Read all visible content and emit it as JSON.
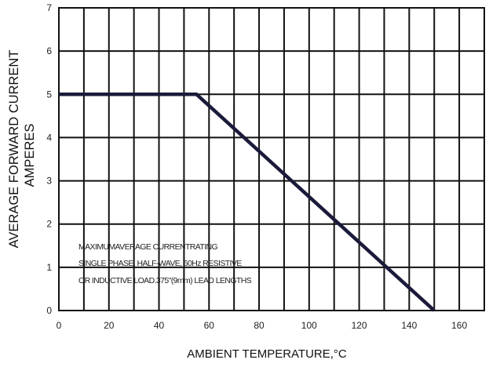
{
  "chart_data": {
    "type": "line",
    "title": "",
    "xlabel": "AMBIENT TEMPERATURE,°C",
    "ylabel_line1": "AVERAGE FORWARD CURRENT",
    "ylabel_line2": "AMPERES",
    "xlim": [
      0,
      170
    ],
    "ylim": [
      0,
      7
    ],
    "x_ticks": [
      0,
      20,
      40,
      60,
      80,
      100,
      120,
      140,
      160
    ],
    "y_ticks": [
      0,
      1,
      2,
      3,
      4,
      5,
      6,
      7
    ],
    "x_grid_step": 10,
    "y_grid_step": 1,
    "grid": true,
    "legend": "none",
    "series": [
      {
        "x": [
          0,
          55,
          150
        ],
        "y": [
          5,
          5,
          0
        ],
        "color": "#1a1a3a"
      }
    ],
    "annotation_lines": [
      "MAXIMUMAVERAGE CURRENTRATING",
      "SINGLE PHASE, HALF-WAVE, 60Hz RESISTIVE",
      "OR INDUCTIVE LOAD.375\"(9mm) LEAD LENGTHS"
    ]
  }
}
